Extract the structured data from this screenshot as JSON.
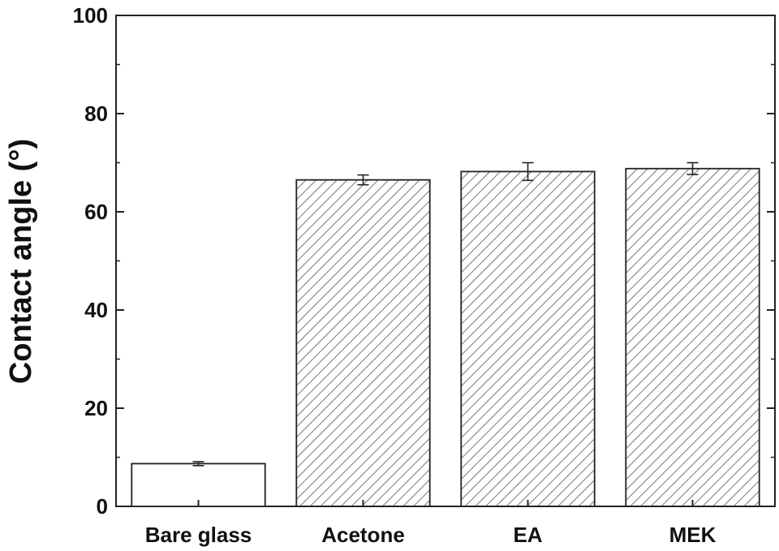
{
  "chart_data": {
    "type": "bar",
    "title": "",
    "xlabel": "",
    "ylabel": "Contact angle (°)",
    "ylim": [
      0,
      100
    ],
    "yticks": [
      0,
      20,
      40,
      60,
      80,
      100
    ],
    "y_tick_labels": [
      "0",
      "20",
      "40",
      "60",
      "80",
      "100"
    ],
    "categories": [
      "Bare glass",
      "Acetone",
      "EA",
      "MEK"
    ],
    "values": [
      8.7,
      66.5,
      68.2,
      68.8
    ],
    "errors": [
      0.4,
      1.0,
      1.8,
      1.2
    ],
    "fill": [
      "none",
      "hatch",
      "hatch",
      "hatch"
    ],
    "grid": false,
    "colors": {
      "bar_edge": "#222222",
      "hatch": "#555555",
      "background": "#ffffff"
    }
  }
}
